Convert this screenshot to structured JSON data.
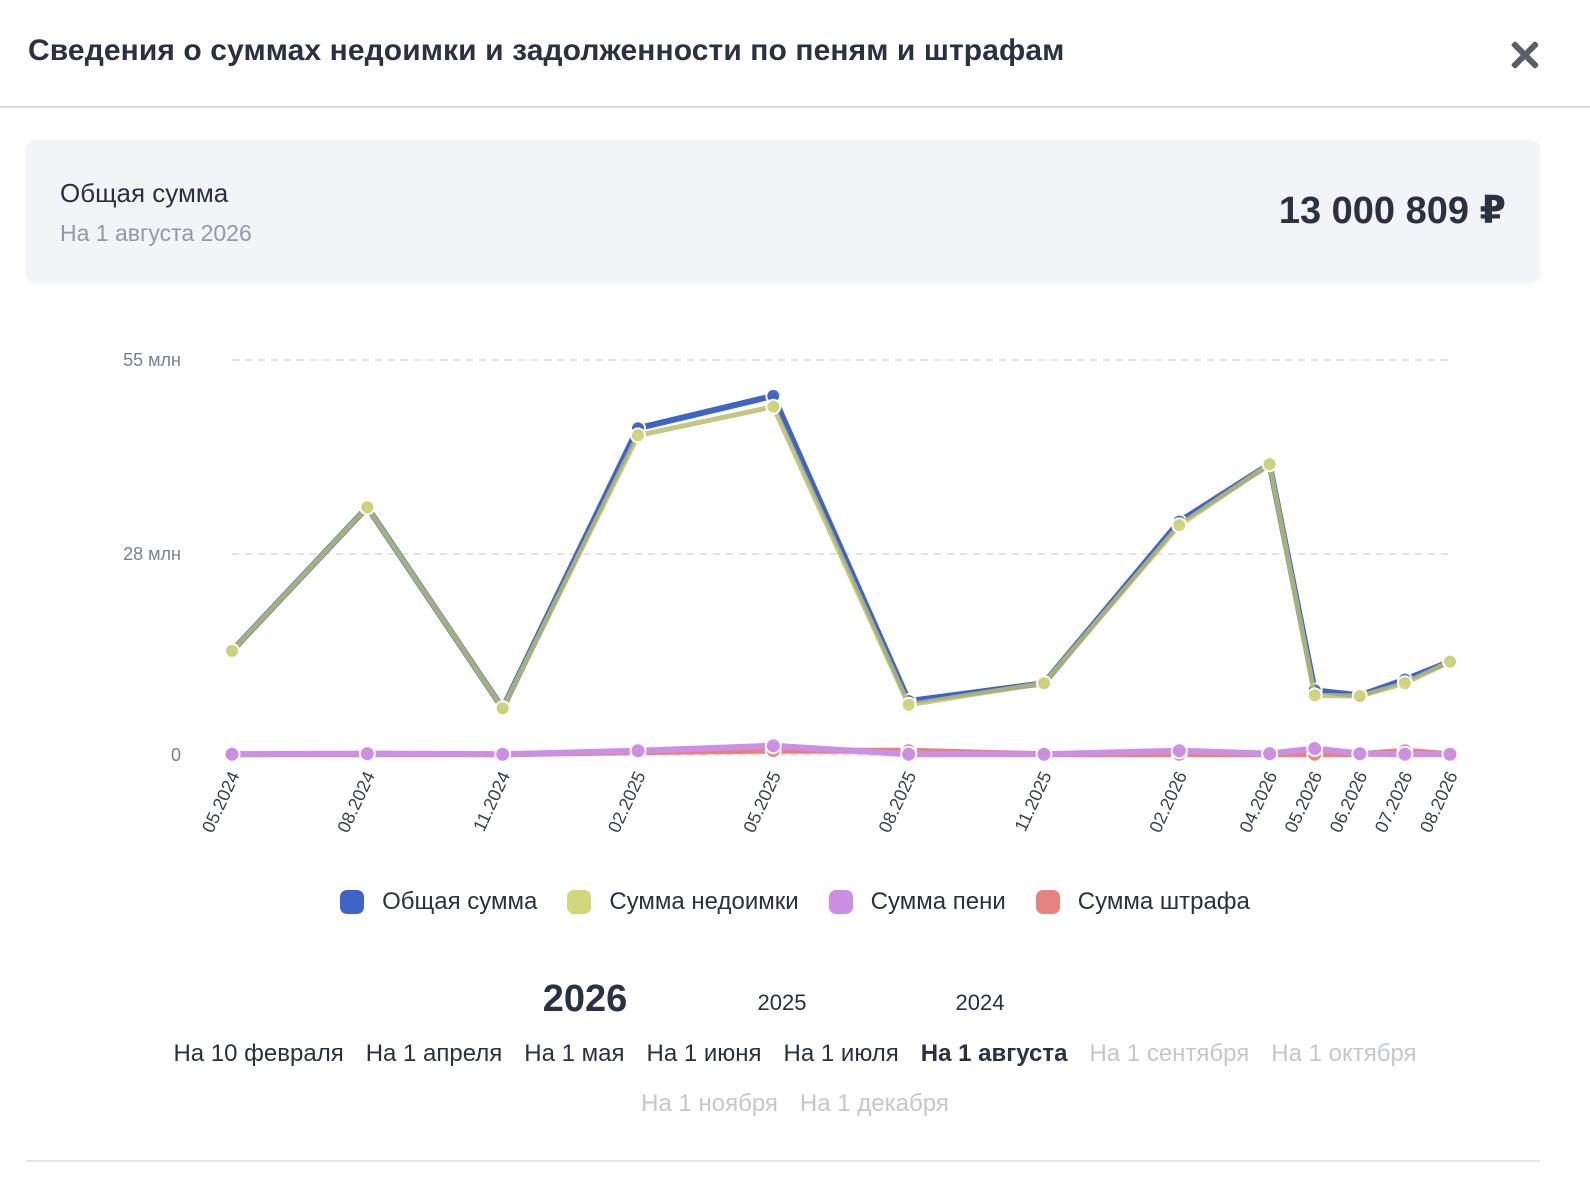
{
  "modal": {
    "title": "Сведения о суммах недоимки и задолженности по пеням и штрафам",
    "close_icon": "close-icon"
  },
  "summary": {
    "label": "Общая сумма",
    "date": "На 1 августа 2026",
    "amount": "13 000 809 ₽"
  },
  "chart_data": {
    "type": "line",
    "categories": [
      "05.2024",
      "08.2024",
      "11.2024",
      "02.2025",
      "05.2025",
      "08.2025",
      "11.2025",
      "02.2026",
      "04.2026",
      "05.2026",
      "06.2026",
      "07.2026",
      "08.2026"
    ],
    "series": [
      {
        "name": "Общая сумма",
        "color": "#3f63c7",
        "values": [
          14.5,
          34.5,
          6.5,
          45.5,
          50.0,
          7.5,
          10.0,
          32.5,
          40.5,
          9.0,
          8.3,
          10.5,
          13.0
        ]
      },
      {
        "name": "Сумма недоимки",
        "color": "#d2d67a",
        "values": [
          14.5,
          34.5,
          6.5,
          44.5,
          48.5,
          7.0,
          10.0,
          32.0,
          40.5,
          8.3,
          8.2,
          10.0,
          13.0
        ]
      },
      {
        "name": "Сумма пени",
        "color": "#cd8fe3",
        "values": [
          0.1,
          0.2,
          0.1,
          0.6,
          1.3,
          0.1,
          0.1,
          0.6,
          0.2,
          0.9,
          0.2,
          0.1,
          0.1
        ]
      },
      {
        "name": "Сумма штрафа",
        "color": "#e5847f",
        "values": [
          0.1,
          0.1,
          0.1,
          0.4,
          0.6,
          0.6,
          0.1,
          0.1,
          0.1,
          0.1,
          0.1,
          0.6,
          0.1
        ]
      }
    ],
    "y_ticks": [
      "0",
      "28 млн",
      "55 млн"
    ],
    "ylim": [
      0,
      55
    ],
    "grid": true,
    "legend_position": "bottom"
  },
  "years": {
    "items": [
      {
        "label": "2026",
        "active": true
      },
      {
        "label": "2025",
        "active": false
      },
      {
        "label": "2024",
        "active": false
      }
    ]
  },
  "dates": {
    "row1": [
      {
        "label": "На 10 февраля",
        "state": "normal"
      },
      {
        "label": "На 1 апреля",
        "state": "normal"
      },
      {
        "label": "На 1 мая",
        "state": "normal"
      },
      {
        "label": "На 1 июня",
        "state": "normal"
      },
      {
        "label": "На 1 июля",
        "state": "normal"
      },
      {
        "label": "На 1 августа",
        "state": "active"
      },
      {
        "label": "На 1 сентября",
        "state": "disabled"
      },
      {
        "label": "На 1 октября",
        "state": "disabled"
      }
    ],
    "row2": [
      {
        "label": "На 1 ноября",
        "state": "disabled"
      },
      {
        "label": "На 1 декабря",
        "state": "disabled"
      }
    ]
  }
}
